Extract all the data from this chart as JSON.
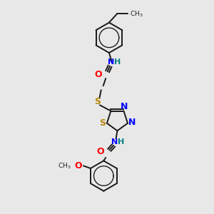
{
  "bg_color": "#e8e8e8",
  "bond_color": "#1a1a1a",
  "N_color": "#0000ff",
  "H_color": "#008080",
  "O_color": "#ff0000",
  "S_color": "#b8860b",
  "line_width": 1.4,
  "figsize": [
    3.0,
    3.0
  ],
  "dpi": 100,
  "xlim": [
    0,
    10
  ],
  "ylim": [
    0,
    10
  ]
}
